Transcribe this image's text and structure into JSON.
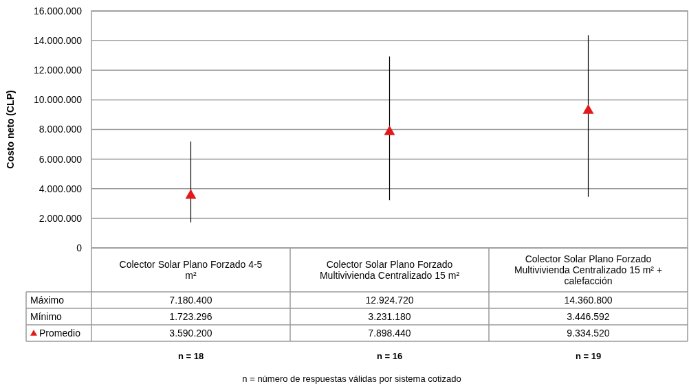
{
  "chart_data": {
    "type": "scatter",
    "ylabel": "Costo neto (CLP)",
    "categories": [
      "Colector Solar Plano Forzado 4-5 m²",
      "Colector Solar Plano Forzado Multivivienda Centralizado 15 m²",
      "Colector Solar Plano Forzado Multivivienda Centralizado 15 m² + calefacción"
    ],
    "series": [
      {
        "name": "Promedio",
        "color": "#e31a1c",
        "marker": "triangle",
        "values": [
          3590200,
          7898440,
          9334520
        ],
        "errors": [
          [
            1723296,
            7180400
          ],
          [
            3231180,
            12924720
          ],
          [
            3446592,
            14360800
          ]
        ],
        "value_labels": [
          "3.590.200",
          "7.898.440",
          "9.334.520"
        ]
      }
    ],
    "ylim": [
      0,
      16000000
    ],
    "yticks": [
      {
        "value": 0,
        "label": "0"
      },
      {
        "value": 2000000,
        "label": "2.000.000"
      },
      {
        "value": 4000000,
        "label": "4.000.000"
      },
      {
        "value": 6000000,
        "label": "6.000.000"
      },
      {
        "value": 8000000,
        "label": "8.000.000"
      },
      {
        "value": 10000000,
        "label": "10.000.000"
      },
      {
        "value": 12000000,
        "label": "12.000.000"
      },
      {
        "value": 14000000,
        "label": "14.000.000"
      },
      {
        "value": 16000000,
        "label": "16.000.000"
      }
    ],
    "grid": "y",
    "legend": "bottom left",
    "annotations": [
      "Máximo",
      "7.180.400",
      "12.924.720",
      "14.360.800",
      "Mínimo",
      "1.723.296",
      "3.231.180",
      "3.446.592",
      "n = 18",
      "n = 16",
      "n = 19",
      "n = número de respuestas válidas por sistema cotizado"
    ]
  }
}
